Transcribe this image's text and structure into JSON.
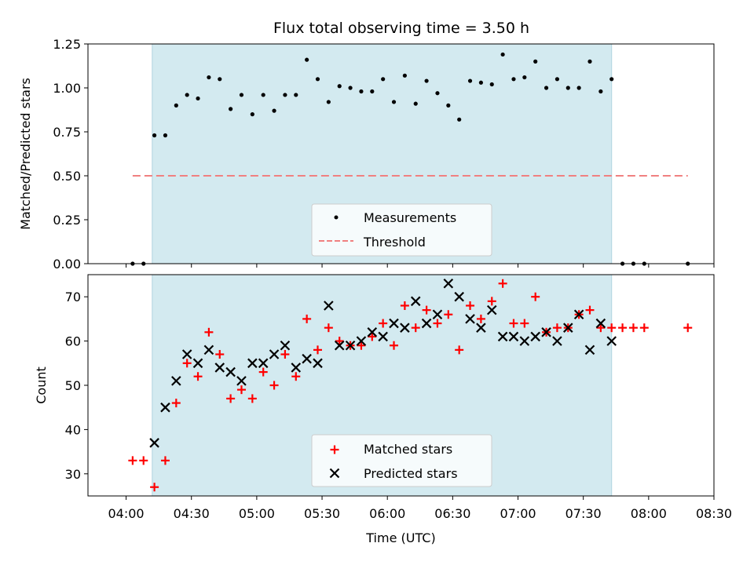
{
  "chart_data": [
    {
      "type": "scatter",
      "title": "Flux total observing time = 3.50 h",
      "xlabel": "",
      "ylabel": "Matched/Predicted stars",
      "ylim": [
        0.0,
        1.25
      ],
      "yticks": [
        "0.00",
        "0.25",
        "0.50",
        "0.75",
        "1.00",
        "1.25"
      ],
      "xlim_hours": [
        3.708,
        8.5
      ],
      "observing_window": [
        "04:12",
        "07:43"
      ],
      "observing_window_color": "#d3eaf0",
      "legend": "lower center",
      "series": [
        {
          "name": "Measurements",
          "marker": "dot",
          "color": "#000000",
          "x": [
            "04:03",
            "04:08",
            "04:13",
            "04:18",
            "04:23",
            "04:28",
            "04:33",
            "04:38",
            "04:43",
            "04:48",
            "04:53",
            "04:58",
            "05:03",
            "05:08",
            "05:13",
            "05:18",
            "05:23",
            "05:28",
            "05:33",
            "05:38",
            "05:43",
            "05:48",
            "05:53",
            "05:58",
            "06:03",
            "06:08",
            "06:13",
            "06:18",
            "06:23",
            "06:28",
            "06:33",
            "06:38",
            "06:43",
            "06:48",
            "06:53",
            "06:58",
            "07:03",
            "07:08",
            "07:13",
            "07:18",
            "07:23",
            "07:28",
            "07:33",
            "07:38",
            "07:43",
            "07:48",
            "07:53",
            "07:58",
            "08:18"
          ],
          "y": [
            0,
            0,
            0.73,
            0.73,
            0.9,
            0.96,
            0.94,
            1.06,
            1.05,
            0.88,
            0.96,
            0.85,
            0.96,
            0.87,
            0.96,
            0.96,
            1.16,
            1.05,
            0.92,
            1.01,
            1.0,
            0.98,
            0.98,
            1.05,
            0.92,
            1.07,
            0.91,
            1.04,
            0.97,
            0.9,
            0.82,
            1.04,
            1.03,
            1.02,
            1.19,
            1.05,
            1.06,
            1.15,
            1.0,
            1.05,
            1.0,
            1.0,
            1.15,
            0.98,
            1.05,
            0,
            0,
            0,
            0
          ]
        },
        {
          "name": "Threshold",
          "style": "dashed",
          "color": "#f08080",
          "x": [
            "04:03",
            "08:18"
          ],
          "y": [
            0.5,
            0.5
          ]
        }
      ]
    },
    {
      "type": "scatter",
      "title": "",
      "xlabel": "Time (UTC)",
      "ylabel": "Count",
      "ylim": [
        25,
        75
      ],
      "yticks": [
        "30",
        "40",
        "50",
        "60",
        "70"
      ],
      "xticks": [
        "04:00",
        "04:30",
        "05:00",
        "05:30",
        "06:00",
        "06:30",
        "07:00",
        "07:30",
        "08:00",
        "08:30"
      ],
      "legend": "lower center",
      "series": [
        {
          "name": "Matched stars",
          "marker": "plus",
          "color": "#ff0000",
          "x": [
            "04:03",
            "04:08",
            "04:13",
            "04:18",
            "04:23",
            "04:28",
            "04:33",
            "04:38",
            "04:43",
            "04:48",
            "04:53",
            "04:58",
            "05:03",
            "05:08",
            "05:13",
            "05:18",
            "05:23",
            "05:28",
            "05:33",
            "05:38",
            "05:43",
            "05:48",
            "05:53",
            "05:58",
            "06:03",
            "06:08",
            "06:13",
            "06:18",
            "06:23",
            "06:28",
            "06:33",
            "06:38",
            "06:43",
            "06:48",
            "06:53",
            "06:58",
            "07:03",
            "07:08",
            "07:13",
            "07:18",
            "07:23",
            "07:28",
            "07:33",
            "07:38",
            "07:43",
            "07:48",
            "07:53",
            "07:58",
            "08:18"
          ],
          "y": [
            33,
            33,
            27,
            33,
            46,
            55,
            52,
            62,
            57,
            47,
            49,
            47,
            53,
            50,
            57,
            52,
            65,
            58,
            63,
            60,
            59,
            59,
            61,
            64,
            59,
            68,
            63,
            67,
            64,
            66,
            58,
            68,
            65,
            69,
            73,
            64,
            64,
            70,
            62,
            63,
            63,
            66,
            67,
            63,
            63,
            63,
            63,
            63,
            63
          ]
        },
        {
          "name": "Predicted stars",
          "marker": "x",
          "color": "#000000",
          "x": [
            "04:13",
            "04:18",
            "04:23",
            "04:28",
            "04:33",
            "04:38",
            "04:43",
            "04:48",
            "04:53",
            "04:58",
            "05:03",
            "05:08",
            "05:13",
            "05:18",
            "05:23",
            "05:28",
            "05:33",
            "05:38",
            "05:43",
            "05:48",
            "05:53",
            "05:58",
            "06:03",
            "06:08",
            "06:13",
            "06:18",
            "06:23",
            "06:28",
            "06:33",
            "06:38",
            "06:43",
            "06:48",
            "06:53",
            "06:58",
            "07:03",
            "07:08",
            "07:13",
            "07:18",
            "07:23",
            "07:28",
            "07:33",
            "07:38",
            "07:43"
          ],
          "y": [
            37,
            45,
            51,
            57,
            55,
            58,
            54,
            53,
            51,
            55,
            55,
            57,
            59,
            54,
            56,
            55,
            68,
            59,
            59,
            60,
            62,
            61,
            64,
            63,
            69,
            64,
            66,
            73,
            70,
            65,
            63,
            67,
            61,
            61,
            60,
            61,
            62,
            60,
            63,
            66,
            58,
            64,
            60
          ]
        }
      ]
    }
  ]
}
